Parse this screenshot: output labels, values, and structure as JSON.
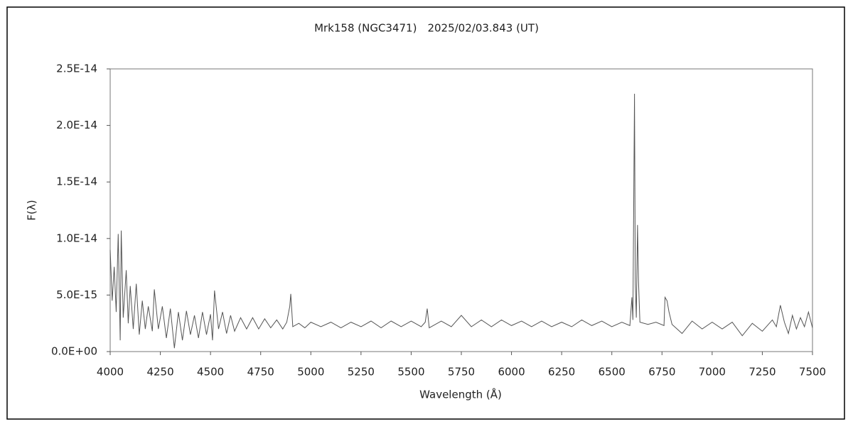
{
  "chart_data": {
    "type": "line",
    "title": "Mrk158 (NGC3471)　2025/02/03.843 (UT)",
    "xlabel": "Wavelength (Å)",
    "ylabel": "F(λ)",
    "color": "#555555",
    "grid": false,
    "xlim": [
      4000,
      7500
    ],
    "xticks": [
      4000,
      4250,
      4500,
      4750,
      5000,
      5250,
      5500,
      5750,
      6000,
      6250,
      6500,
      6750,
      7000,
      7250,
      7500
    ],
    "ylim": [
      0,
      2.5e-14
    ],
    "yticks": [
      {
        "value": 0,
        "label": "0.0E+00"
      },
      {
        "value": 5e-15,
        "label": "5.0E-15"
      },
      {
        "value": 1e-14,
        "label": "1.0E-14"
      },
      {
        "value": 1.5e-14,
        "label": "1.5E-14"
      },
      {
        "value": 2e-14,
        "label": "2.0E-14"
      },
      {
        "value": 2.5e-14,
        "label": "2.5E-14"
      }
    ],
    "x": [
      4000,
      4010,
      4020,
      4030,
      4040,
      4050,
      4055,
      4065,
      4080,
      4090,
      4100,
      4115,
      4130,
      4145,
      4160,
      4175,
      4190,
      4210,
      4220,
      4240,
      4260,
      4280,
      4300,
      4320,
      4340,
      4360,
      4380,
      4400,
      4420,
      4440,
      4460,
      4480,
      4500,
      4510,
      4520,
      4540,
      4560,
      4580,
      4600,
      4620,
      4650,
      4680,
      4710,
      4740,
      4770,
      4800,
      4830,
      4860,
      4880,
      4895,
      4900,
      4910,
      4940,
      4970,
      5000,
      5050,
      5100,
      5150,
      5200,
      5250,
      5300,
      5350,
      5400,
      5450,
      5500,
      5550,
      5570,
      5580,
      5590,
      5650,
      5700,
      5750,
      5800,
      5850,
      5900,
      5950,
      6000,
      6050,
      6100,
      6150,
      6200,
      6250,
      6300,
      6350,
      6400,
      6450,
      6500,
      6550,
      6590,
      6600,
      6605,
      6610,
      6613,
      6617,
      6622,
      6628,
      6633,
      6640,
      6680,
      6720,
      6760,
      6765,
      6775,
      6785,
      6800,
      6850,
      6900,
      6950,
      7000,
      7050,
      7100,
      7150,
      7200,
      7250,
      7300,
      7320,
      7340,
      7360,
      7380,
      7400,
      7420,
      7440,
      7460,
      7480,
      7500
    ],
    "values": [
      9e-15,
      4.5e-15,
      7.5e-15,
      3.5e-15,
      1.04e-14,
      1e-15,
      1.07e-14,
      3e-15,
      7.2e-15,
      2.5e-15,
      5.8e-15,
      2e-15,
      6e-15,
      1.5e-15,
      4.5e-15,
      2e-15,
      4e-15,
      1.8e-15,
      5.5e-15,
      2e-15,
      4e-15,
      1.2e-15,
      3.8e-15,
      3e-16,
      3.5e-15,
      1e-15,
      3.6e-15,
      1.5e-15,
      3.2e-15,
      1.2e-15,
      3.5e-15,
      1.5e-15,
      3.3e-15,
      1e-15,
      5.4e-15,
      2e-15,
      3.5e-15,
      1.6e-15,
      3.2e-15,
      1.8e-15,
      3e-15,
      2e-15,
      3e-15,
      2e-15,
      2.9e-15,
      2.1e-15,
      2.8e-15,
      2e-15,
      2.6e-15,
      4e-15,
      5.1e-15,
      2.2e-15,
      2.5e-15,
      2.1e-15,
      2.6e-15,
      2.2e-15,
      2.6e-15,
      2.1e-15,
      2.6e-15,
      2.2e-15,
      2.7e-15,
      2.1e-15,
      2.7e-15,
      2.2e-15,
      2.7e-15,
      2.2e-15,
      2.6e-15,
      3.8e-15,
      2.1e-15,
      2.7e-15,
      2.2e-15,
      3.2e-15,
      2.2e-15,
      2.8e-15,
      2.2e-15,
      2.8e-15,
      2.3e-15,
      2.7e-15,
      2.2e-15,
      2.7e-15,
      2.2e-15,
      2.6e-15,
      2.2e-15,
      2.8e-15,
      2.3e-15,
      2.7e-15,
      2.2e-15,
      2.6e-15,
      2.3e-15,
      4.8e-15,
      2.8e-15,
      1.53e-14,
      2.28e-14,
      6e-15,
      3e-15,
      1.12e-14,
      6.2e-15,
      2.6e-15,
      2.4e-15,
      2.6e-15,
      2.3e-15,
      4.8e-15,
      4.5e-15,
      3.5e-15,
      2.4e-15,
      1.6e-15,
      2.7e-15,
      2e-15,
      2.6e-15,
      2e-15,
      2.6e-15,
      1.4e-15,
      2.5e-15,
      1.8e-15,
      2.8e-15,
      2.2e-15,
      4.1e-15,
      2.6e-15,
      1.6e-15,
      3.2e-15,
      2e-15,
      3e-15,
      2.2e-15,
      3.5e-15,
      2.1e-15
    ]
  }
}
